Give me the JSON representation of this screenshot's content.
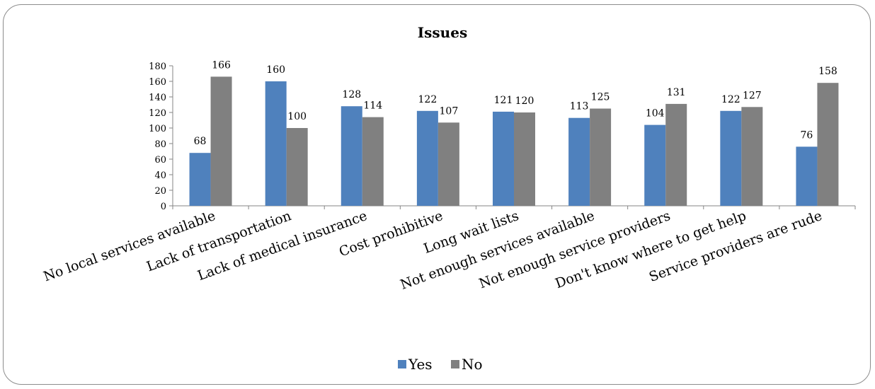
{
  "chart_data": {
    "type": "bar",
    "title": "Issues",
    "categories": [
      "No local services available",
      "Lack of transportation",
      "Lack of medical insurance",
      "Cost prohibitive",
      "Long wait lists",
      "Not enough services available",
      "Not enough service providers",
      "Don't know where to get help",
      "Service providers are rude"
    ],
    "series": [
      {
        "name": "Yes",
        "values": [
          68,
          160,
          128,
          122,
          121,
          113,
          104,
          122,
          76
        ],
        "color": "#4f81bd"
      },
      {
        "name": "No",
        "values": [
          166,
          100,
          114,
          107,
          120,
          125,
          131,
          127,
          158
        ],
        "color": "#808080"
      }
    ],
    "yticks": [
      "0",
      "20",
      "40",
      "60",
      "80",
      "100",
      "120",
      "140",
      "160",
      "180"
    ],
    "ylim": [
      0,
      180
    ],
    "xlabel": "",
    "ylabel": "",
    "grid": false,
    "legend_position": "bottom"
  }
}
